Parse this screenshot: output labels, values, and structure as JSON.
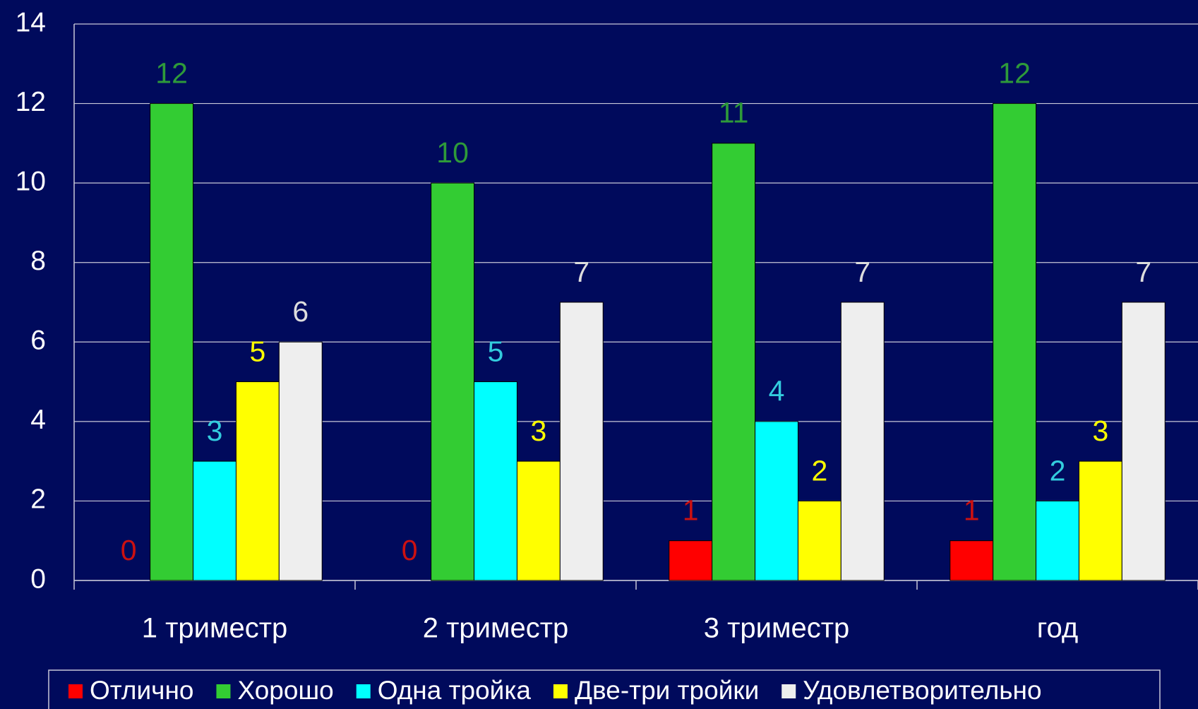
{
  "chart_data": {
    "type": "bar",
    "categories": [
      "1 триместр",
      "2 триместр",
      "3 триместр",
      "год"
    ],
    "series": [
      {
        "name": "Отлично",
        "color": "#ff0000",
        "label_color": "#cc1111",
        "values": [
          0,
          0,
          1,
          1
        ]
      },
      {
        "name": "Хорошо",
        "color": "#33cc33",
        "label_color": "#2e9a3a",
        "values": [
          12,
          10,
          11,
          12
        ]
      },
      {
        "name": "Одна тройка",
        "color": "#00ffff",
        "label_color": "#33ccdd",
        "values": [
          3,
          5,
          4,
          2
        ]
      },
      {
        "name": "Две-три тройки",
        "color": "#ffff00",
        "label_color": "#ffff00",
        "values": [
          5,
          3,
          2,
          3
        ]
      },
      {
        "name": "Удовлетворительно",
        "color": "#eeeeee",
        "label_color": "#dddddd",
        "values": [
          6,
          7,
          7,
          7
        ]
      }
    ],
    "ylim": [
      0,
      14
    ],
    "yticks": [
      0,
      2,
      4,
      6,
      8,
      10,
      12,
      14
    ],
    "grid": true,
    "legend": "bottom"
  }
}
